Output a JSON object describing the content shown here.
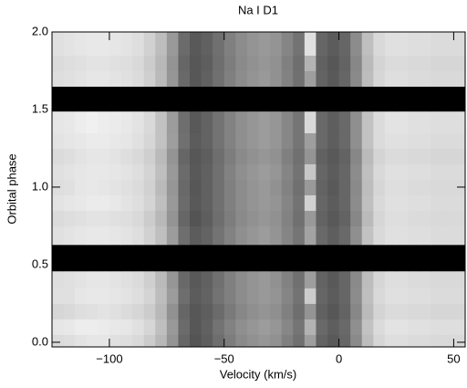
{
  "chart_data": {
    "type": "heatmap",
    "title": "Na I D1",
    "xlabel": "Velocity (km/s)",
    "ylabel": "Orbital phase",
    "xlim": [
      -125,
      55
    ],
    "ylim": [
      -0.03,
      2.0
    ],
    "xticks": [
      {
        "value": -100,
        "label": "−100"
      },
      {
        "value": -50,
        "label": "−50"
      },
      0,
      50
    ],
    "yticks": [
      {
        "value": 0,
        "label": "0.0"
      },
      {
        "value": 0.5,
        "label": "0.5"
      },
      {
        "value": 1,
        "label": "1.0"
      },
      {
        "value": 1.5,
        "label": "1.5"
      },
      {
        "value": 2,
        "label": "2.0"
      }
    ],
    "zlim": [
      0,
      100
    ],
    "x_bins": [
      -125,
      -120,
      -115,
      -110,
      -105,
      -100,
      -95,
      -90,
      -85,
      -80,
      -75,
      -70,
      -65,
      -60,
      -55,
      -50,
      -45,
      -40,
      -35,
      -30,
      -25,
      -20,
      -15,
      -10,
      -5,
      0,
      5,
      10,
      15,
      20,
      25,
      30,
      35,
      40,
      45,
      50,
      55
    ],
    "y_bins": [
      -0.03,
      0.05,
      0.15,
      0.25,
      0.35,
      0.46,
      0.63,
      0.75,
      0.85,
      0.95,
      1.05,
      1.15,
      1.25,
      1.35,
      1.49,
      1.65,
      1.75,
      1.85,
      2.0
    ],
    "z": [
      [
        86,
        87,
        89,
        90,
        90,
        88,
        87,
        85,
        80,
        72,
        58,
        40,
        33,
        37,
        43,
        49,
        54,
        57,
        59,
        57,
        50,
        44,
        62,
        39,
        35,
        40,
        54,
        74,
        84,
        87,
        87,
        86,
        86,
        85,
        85,
        85
      ],
      [
        90,
        91,
        93,
        93,
        92,
        91,
        90,
        88,
        84,
        75,
        60,
        42,
        34,
        38,
        45,
        51,
        56,
        59,
        61,
        59,
        53,
        46,
        70,
        41,
        37,
        41,
        56,
        76,
        86,
        89,
        89,
        88,
        88,
        87,
        87,
        87
      ],
      [
        84,
        85,
        87,
        88,
        89,
        88,
        86,
        84,
        80,
        72,
        57,
        40,
        34,
        37,
        42,
        48,
        53,
        56,
        58,
        56,
        50,
        43,
        58,
        38,
        34,
        39,
        53,
        73,
        83,
        86,
        86,
        85,
        85,
        84,
        84,
        84
      ],
      [
        88,
        88,
        90,
        91,
        91,
        90,
        89,
        87,
        83,
        74,
        61,
        43,
        36,
        39,
        45,
        50,
        55,
        58,
        60,
        58,
        52,
        45,
        80,
        40,
        36,
        40,
        55,
        75,
        85,
        88,
        88,
        87,
        87,
        86,
        86,
        86
      ],
      [
        87,
        88,
        89,
        90,
        90,
        89,
        88,
        86,
        81,
        73,
        59,
        41,
        35,
        38,
        44,
        50,
        55,
        58,
        60,
        57,
        51,
        44,
        62,
        39,
        35,
        40,
        54,
        74,
        84,
        87,
        87,
        86,
        86,
        85,
        85,
        85
      ],
      [
        0,
        0,
        0,
        0,
        0,
        0,
        0,
        0,
        0,
        0,
        0,
        0,
        0,
        0,
        0,
        0,
        0,
        0,
        0,
        0,
        0,
        0,
        0,
        0,
        0,
        0,
        0,
        0,
        0,
        0,
        0,
        0,
        0,
        0,
        0,
        0
      ],
      [
        88,
        89,
        90,
        91,
        91,
        90,
        89,
        87,
        82,
        75,
        61,
        43,
        36,
        39,
        45,
        51,
        56,
        59,
        61,
        58,
        52,
        46,
        64,
        41,
        37,
        41,
        56,
        76,
        85,
        88,
        88,
        87,
        87,
        86,
        86,
        86
      ],
      [
        86,
        87,
        88,
        89,
        89,
        88,
        87,
        85,
        80,
        72,
        58,
        40,
        33,
        37,
        43,
        49,
        54,
        57,
        59,
        57,
        51,
        44,
        60,
        39,
        35,
        39,
        53,
        73,
        84,
        87,
        87,
        86,
        86,
        85,
        85,
        85
      ],
      [
        89,
        90,
        91,
        92,
        92,
        91,
        89,
        87,
        83,
        75,
        60,
        42,
        35,
        38,
        44,
        50,
        55,
        58,
        60,
        58,
        52,
        45,
        82,
        40,
        36,
        40,
        55,
        75,
        85,
        88,
        88,
        87,
        87,
        86,
        86,
        86
      ],
      [
        87,
        88,
        90,
        91,
        90,
        89,
        88,
        86,
        82,
        73,
        59,
        41,
        34,
        38,
        44,
        50,
        55,
        58,
        60,
        57,
        51,
        44,
        60,
        39,
        35,
        40,
        54,
        74,
        84,
        87,
        87,
        86,
        86,
        85,
        85,
        85
      ],
      [
        88,
        89,
        90,
        91,
        91,
        90,
        89,
        87,
        83,
        75,
        60,
        42,
        35,
        38,
        44,
        51,
        56,
        59,
        61,
        59,
        52,
        45,
        78,
        40,
        36,
        40,
        55,
        75,
        85,
        88,
        88,
        87,
        87,
        86,
        86,
        86
      ],
      [
        86,
        87,
        89,
        90,
        90,
        89,
        87,
        85,
        81,
        73,
        58,
        40,
        34,
        37,
        43,
        49,
        54,
        57,
        59,
        57,
        50,
        44,
        58,
        38,
        35,
        39,
        53,
        73,
        83,
        86,
        86,
        85,
        85,
        84,
        84,
        84
      ],
      [
        89,
        90,
        91,
        92,
        92,
        91,
        90,
        88,
        84,
        76,
        62,
        44,
        36,
        39,
        45,
        51,
        56,
        59,
        61,
        59,
        53,
        46,
        62,
        41,
        37,
        41,
        56,
        76,
        86,
        88,
        88,
        87,
        87,
        86,
        86,
        86
      ],
      [
        90,
        91,
        93,
        94,
        93,
        92,
        91,
        89,
        85,
        76,
        61,
        43,
        35,
        39,
        45,
        51,
        56,
        59,
        61,
        59,
        53,
        46,
        85,
        41,
        37,
        41,
        56,
        76,
        86,
        89,
        89,
        88,
        88,
        87,
        87,
        87
      ],
      [
        0,
        0,
        0,
        0,
        0,
        0,
        0,
        0,
        0,
        0,
        0,
        0,
        0,
        0,
        0,
        0,
        0,
        0,
        0,
        0,
        0,
        0,
        0,
        0,
        0,
        0,
        0,
        0,
        0,
        0,
        0,
        0,
        0,
        0,
        0,
        0
      ],
      [
        87,
        88,
        89,
        90,
        90,
        89,
        88,
        86,
        81,
        73,
        59,
        41,
        34,
        38,
        44,
        50,
        55,
        58,
        60,
        57,
        51,
        44,
        62,
        39,
        35,
        40,
        54,
        74,
        84,
        87,
        87,
        86,
        86,
        85,
        85,
        85
      ],
      [
        86,
        87,
        88,
        89,
        89,
        88,
        87,
        85,
        80,
        72,
        58,
        40,
        34,
        37,
        43,
        49,
        54,
        57,
        59,
        57,
        50,
        43,
        70,
        38,
        34,
        39,
        53,
        73,
        83,
        86,
        86,
        85,
        85,
        84,
        84,
        84
      ],
      [
        88,
        89,
        90,
        91,
        91,
        90,
        89,
        87,
        82,
        74,
        60,
        42,
        35,
        38,
        44,
        50,
        55,
        58,
        60,
        58,
        52,
        45,
        88,
        40,
        36,
        40,
        55,
        75,
        85,
        88,
        88,
        87,
        87,
        86,
        86,
        86
      ]
    ]
  }
}
